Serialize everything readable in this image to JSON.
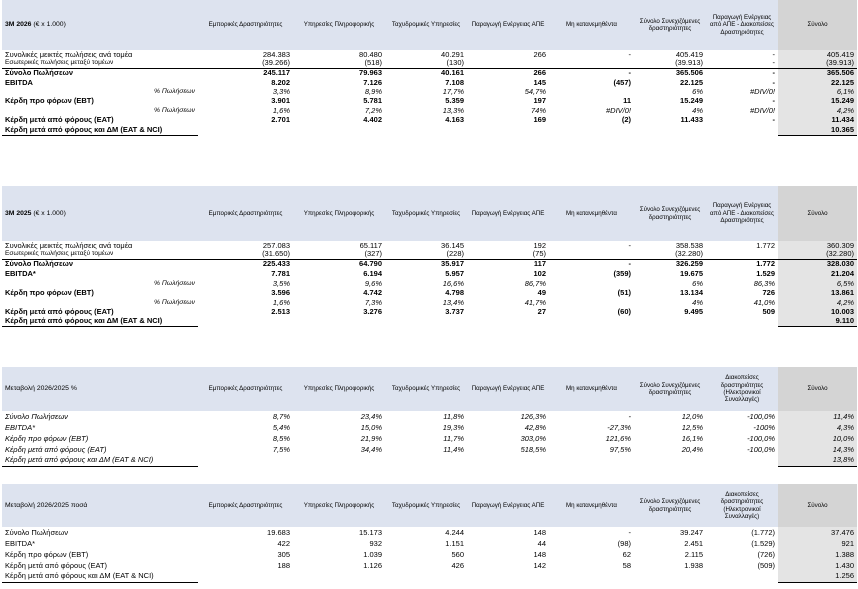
{
  "col_headers": [
    "Εμπορικές Δραστηριότητες",
    "Υπηρεσίες Πληροφορικής",
    "Ταχυδρομικές Υπηρεσίες",
    "Παραγωγή Ενέργειας ΑΠΕ",
    "Μη κατανεμηθέντα",
    "Σύνολο Συνεχιζόμενες δραστηριότητες"
  ],
  "tables": [
    {
      "title": "3M 2026",
      "unit": "(€ x 1.000)",
      "col7_header": "Παραγωγή Ενέργειας από ΑΠΕ - Διακοπείσες Δραστηριότητες",
      "total_header": "Σύνολο",
      "rows": [
        {
          "label": "Συνολικές μεικτές πωλήσεις ανά τομέα",
          "values": [
            "284.383",
            "80.480",
            "40.291",
            "266",
            "-",
            "405.419",
            "-",
            "405.419"
          ]
        },
        {
          "label": "Εσωτερικές πωλήσεις μεταξύ τομέων",
          "values": [
            "(39.266)",
            "(518)",
            "(130)",
            "",
            "",
            "(39.913)",
            "-",
            "(39.913)"
          ]
        },
        {
          "label": "Σύνολο Πωλήσεων",
          "values": [
            "245.117",
            "79.963",
            "40.161",
            "266",
            "-",
            "365.506",
            "-",
            "365.506"
          ]
        },
        {
          "label": "EBITDA",
          "values": [
            "8.202",
            "7.126",
            "7.108",
            "145",
            "(457)",
            "22.125",
            "-",
            "22.125"
          ]
        },
        {
          "label": "% Πωλήσεων",
          "values": [
            "3,3%",
            "8,9%",
            "17,7%",
            "54,7%",
            "",
            "6%",
            "#DIV/0!",
            "6,1%"
          ]
        },
        {
          "label": "Κέρδη προ φόρων (EBT)",
          "values": [
            "3.901",
            "5.781",
            "5.359",
            "197",
            "11",
            "15.249",
            "-",
            "15.249"
          ]
        },
        {
          "label": "% Πωλήσεων",
          "values": [
            "1,6%",
            "7,2%",
            "13,3%",
            "74%",
            "#DIV/0!",
            "4%",
            "#DIV/0!",
            "4,2%"
          ]
        },
        {
          "label": "Κέρδη μετά από φόρους (EAT)",
          "values": [
            "2.701",
            "4.402",
            "4.163",
            "169",
            "(2)",
            "11.433",
            "-",
            "11.434"
          ]
        },
        {
          "label": "Κέρδη μετά από φόρους και ΔΜ (EAT & NCI)",
          "values": [
            "",
            "",
            "",
            "",
            "",
            "",
            "",
            "10.365"
          ]
        }
      ]
    },
    {
      "title": "3M 2025",
      "unit": "(€ x 1.000)",
      "col7_header": "Παραγωγή Ενέργειας από ΑΠΕ - Διακοπείσες Δραστηριότητες",
      "total_header": "Σύνολο",
      "rows": [
        {
          "label": "Συνολικές μεικτές πωλήσεις ανά τομέα",
          "values": [
            "257.083",
            "65.117",
            "36.145",
            "192",
            "-",
            "358.538",
            "1.772",
            "360.309"
          ]
        },
        {
          "label": "Εσωτερικές πωλήσεις μεταξύ τομέων",
          "values": [
            "(31.650)",
            "(327)",
            "(228)",
            "(75)",
            "",
            "(32.280)",
            "",
            "(32.280)"
          ]
        },
        {
          "label": "Σύνολο Πωλήσεων",
          "values": [
            "225.433",
            "64.790",
            "35.917",
            "117",
            "-",
            "326.259",
            "1.772",
            "328.030"
          ]
        },
        {
          "label": "EBITDA*",
          "values": [
            "7.781",
            "6.194",
            "5.957",
            "102",
            "(359)",
            "19.675",
            "1.529",
            "21.204"
          ]
        },
        {
          "label": "% Πωλήσεων",
          "values": [
            "3,5%",
            "9,6%",
            "16,6%",
            "86,7%",
            "",
            "6%",
            "86,3%",
            "6,5%"
          ]
        },
        {
          "label": "Κέρδη προ φόρων (EBT)",
          "values": [
            "3.596",
            "4.742",
            "4.798",
            "49",
            "(51)",
            "13.134",
            "726",
            "13.861"
          ]
        },
        {
          "label": "% Πωλήσεων",
          "values": [
            "1,6%",
            "7,3%",
            "13,4%",
            "41,7%",
            "",
            "4%",
            "41,0%",
            "4,2%"
          ]
        },
        {
          "label": "Κέρδη μετά από φόρους (EAT)",
          "values": [
            "2.513",
            "3.276",
            "3.737",
            "27",
            "(60)",
            "9.495",
            "509",
            "10.003"
          ]
        },
        {
          "label": "Κέρδη μετά από φόρους και ΔΜ (EAT & NCI)",
          "values": [
            "",
            "",
            "",
            "",
            "",
            "",
            "",
            "9.110"
          ]
        }
      ]
    },
    {
      "title": "Μεταβολή 2026/2025 %",
      "unit": "",
      "col7_header": "Διακοπείσες δραστηριότητες (Ηλεκτρονικοί Συναλλαγές)",
      "total_header": "Σύνολο",
      "rows": [
        {
          "label": "Σύνολο Πωλήσεων",
          "values": [
            "8,7%",
            "23,4%",
            "11,8%",
            "126,3%",
            "-",
            "12,0%",
            "-100,0%",
            "11,4%"
          ]
        },
        {
          "label": "EBITDA*",
          "values": [
            "5,4%",
            "15,0%",
            "19,3%",
            "42,8%",
            "-27,3%",
            "12,5%",
            "-100%",
            "4,3%"
          ]
        },
        {
          "label": "Κέρδη προ φόρων (EBT)",
          "values": [
            "8,5%",
            "21,9%",
            "11,7%",
            "303,0%",
            "121,6%",
            "16,1%",
            "-100,0%",
            "10,0%"
          ]
        },
        {
          "label": "Κέρδη μετά από φόρους (EAT)",
          "values": [
            "7,5%",
            "34,4%",
            "11,4%",
            "518,5%",
            "97,5%",
            "20,4%",
            "-100,0%",
            "14,3%"
          ]
        },
        {
          "label": "Κέρδη μετά από φόρους και ΔΜ (EAT & NCI)",
          "values": [
            "",
            "",
            "",
            "",
            "",
            "",
            "",
            "13,8%"
          ]
        }
      ]
    },
    {
      "title": "Μεταβολή 2026/2025 ποσά",
      "unit": "",
      "col7_header": "Διακοπείσες δραστηριότητες (Ηλεκτρονικοί Συναλλαγές)",
      "total_header": "Σύνολο",
      "rows": [
        {
          "label": "Σύνολο Πωλήσεων",
          "values": [
            "19.683",
            "15.173",
            "4.244",
            "148",
            "-",
            "39.247",
            "(1.772)",
            "37.476"
          ]
        },
        {
          "label": "EBITDA*",
          "values": [
            "422",
            "932",
            "1.151",
            "44",
            "(98)",
            "2.451",
            "(1.529)",
            "921"
          ]
        },
        {
          "label": "Κέρδη προ φόρων (EBT)",
          "values": [
            "305",
            "1.039",
            "560",
            "148",
            "62",
            "2.115",
            "(726)",
            "1.388"
          ]
        },
        {
          "label": "Κέρδη μετά από φόρους (EAT)",
          "values": [
            "188",
            "1.126",
            "426",
            "142",
            "58",
            "1.938",
            "(509)",
            "1.430"
          ]
        },
        {
          "label": "Κέρδη μετά από φόρους και ΔΜ (EAT & NCI)",
          "values": [
            "",
            "",
            "",
            "",
            "",
            "",
            "",
            "1.256"
          ]
        }
      ]
    }
  ]
}
